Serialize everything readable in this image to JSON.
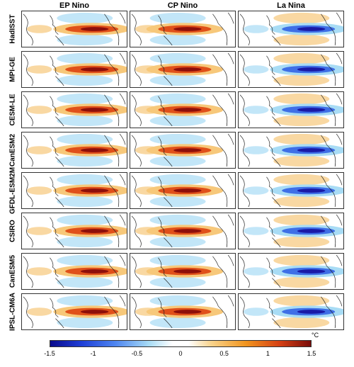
{
  "columns": [
    "EP Nino",
    "CP Nino",
    "La Nina"
  ],
  "rows": [
    "HadISST",
    "MPI-GE",
    "CESM-LE",
    "CanESM2",
    "GFDL-ESM2M",
    "CSIRO",
    "CanESM5",
    "IPSL-CM6A"
  ],
  "colorbar": {
    "ticks": [
      "-1.5",
      "-1",
      "-0.5",
      "0",
      "0.5",
      "1",
      "1.5"
    ],
    "unit": "°C",
    "range": [
      -1.5,
      1.5
    ]
  },
  "colors": {
    "warm_strong": "#8e0f0a",
    "warm": "#e0501a",
    "warm_light": "#f7c87a",
    "cool_light": "#a8dcf5",
    "cool": "#3f6fe6",
    "cool_strong": "#1a1aa6",
    "coast": "#222222"
  }
}
